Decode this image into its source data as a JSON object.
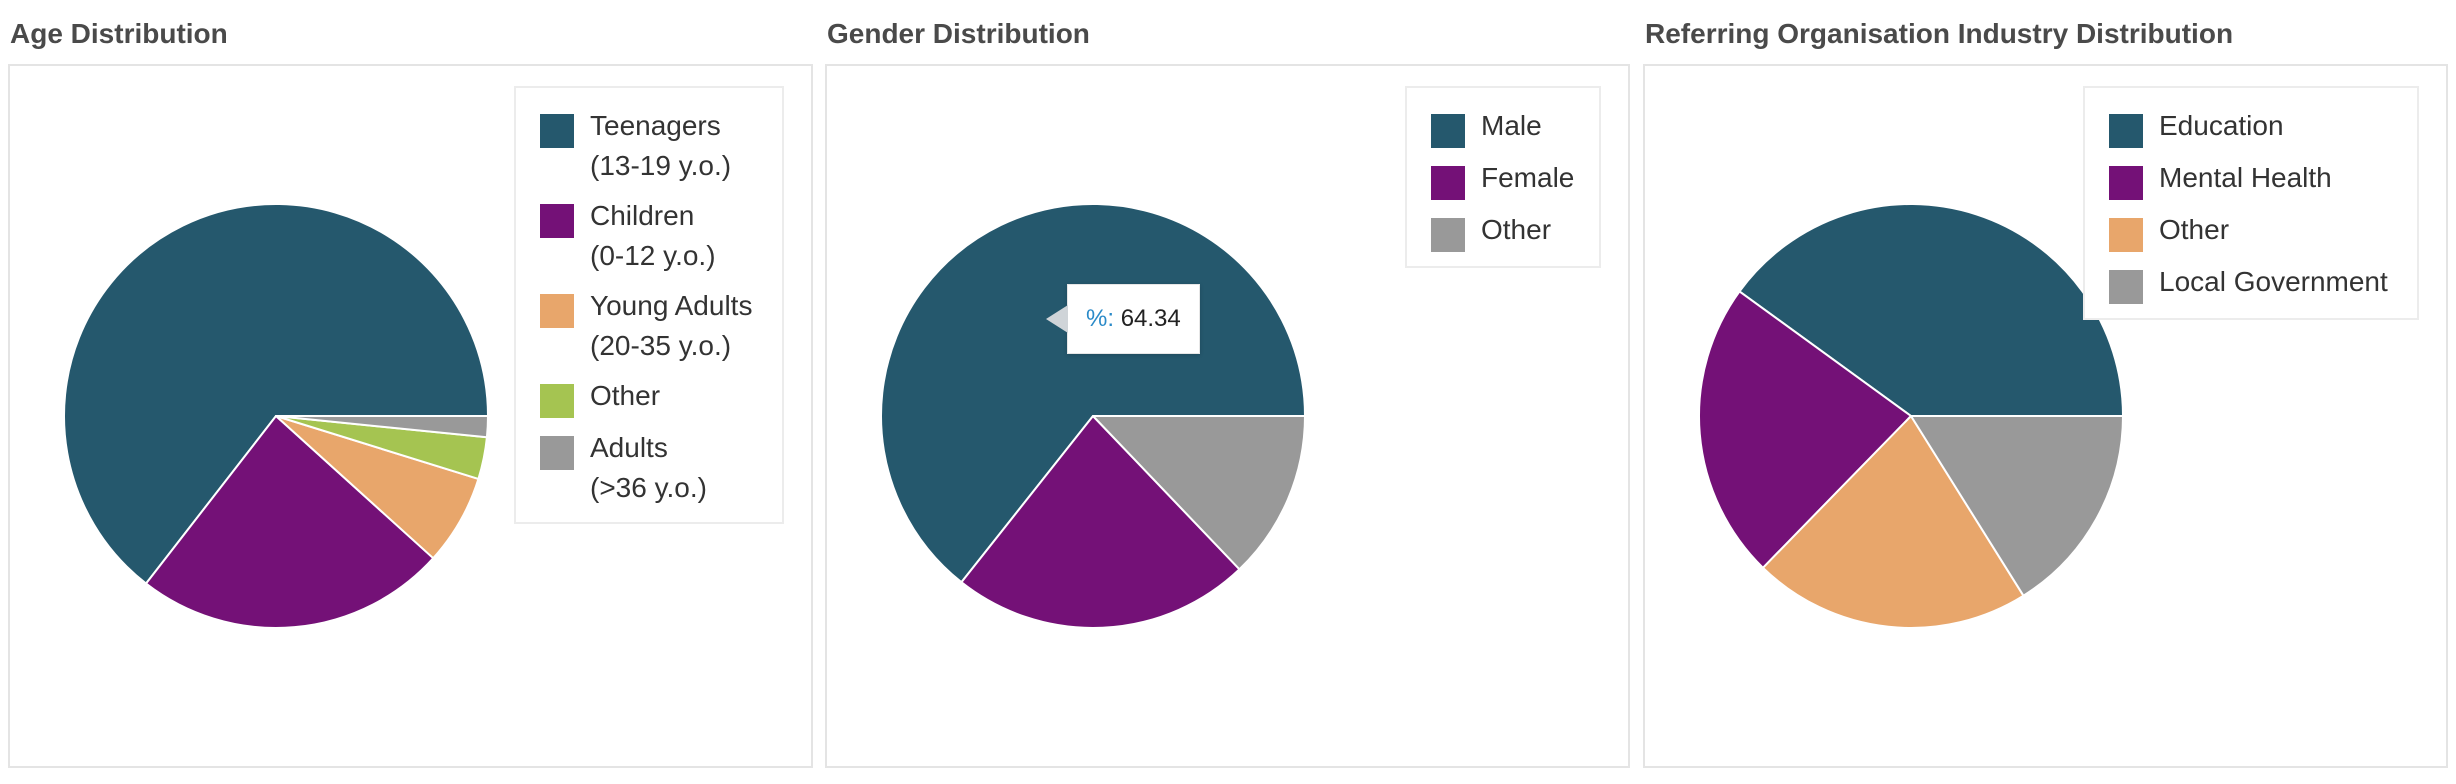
{
  "chart_data": [
    {
      "type": "pie",
      "title": "Age Distribution",
      "colors": [
        "#25586d",
        "#741177",
        "#e8a66b",
        "#a5c451",
        "#999999"
      ],
      "legend": {
        "placement": "top-right",
        "items": [
          "Teenagers\n(13-19 y.o.)",
          "Children\n(0-12 y.o.)",
          "Young Adults\n(20-35 y.o.)",
          "Other",
          "Adults\n(>36 y.o.)"
        ]
      },
      "slices": [
        {
          "name": "Teenagers (13-19 y.o.)",
          "value": 64.5
        },
        {
          "name": "Children (0-12 y.o.)",
          "value": 23.8
        },
        {
          "name": "Young Adults (20-35 y.o.)",
          "value": 6.9
        },
        {
          "name": "Other",
          "value": 3.2
        },
        {
          "name": "Adults (>36 y.o.)",
          "value": 1.6
        }
      ]
    },
    {
      "type": "pie",
      "title": "Gender Distribution",
      "colors": [
        "#25586d",
        "#741177",
        "#999999"
      ],
      "legend": {
        "placement": "top-right",
        "items": [
          "Male",
          "Female",
          "Other"
        ]
      },
      "slices": [
        {
          "name": "Male",
          "value": 64.34
        },
        {
          "name": "Female",
          "value": 22.8
        },
        {
          "name": "Other",
          "value": 12.86
        }
      ],
      "tooltip": {
        "key": "%:",
        "value": "64.34"
      }
    },
    {
      "type": "pie",
      "title": "Referring Organisation Industry Distribution",
      "colors": [
        "#25586d",
        "#741177",
        "#e8a66b",
        "#999999"
      ],
      "legend": {
        "placement": "top-right",
        "items": [
          "Education",
          "Mental Health",
          "Other",
          "Local Government"
        ]
      },
      "slices": [
        {
          "name": "Education",
          "value": 40.0
        },
        {
          "name": "Mental Health",
          "value": 22.7
        },
        {
          "name": "Other",
          "value": 21.2
        },
        {
          "name": "Local Government",
          "value": 16.1
        }
      ]
    }
  ]
}
